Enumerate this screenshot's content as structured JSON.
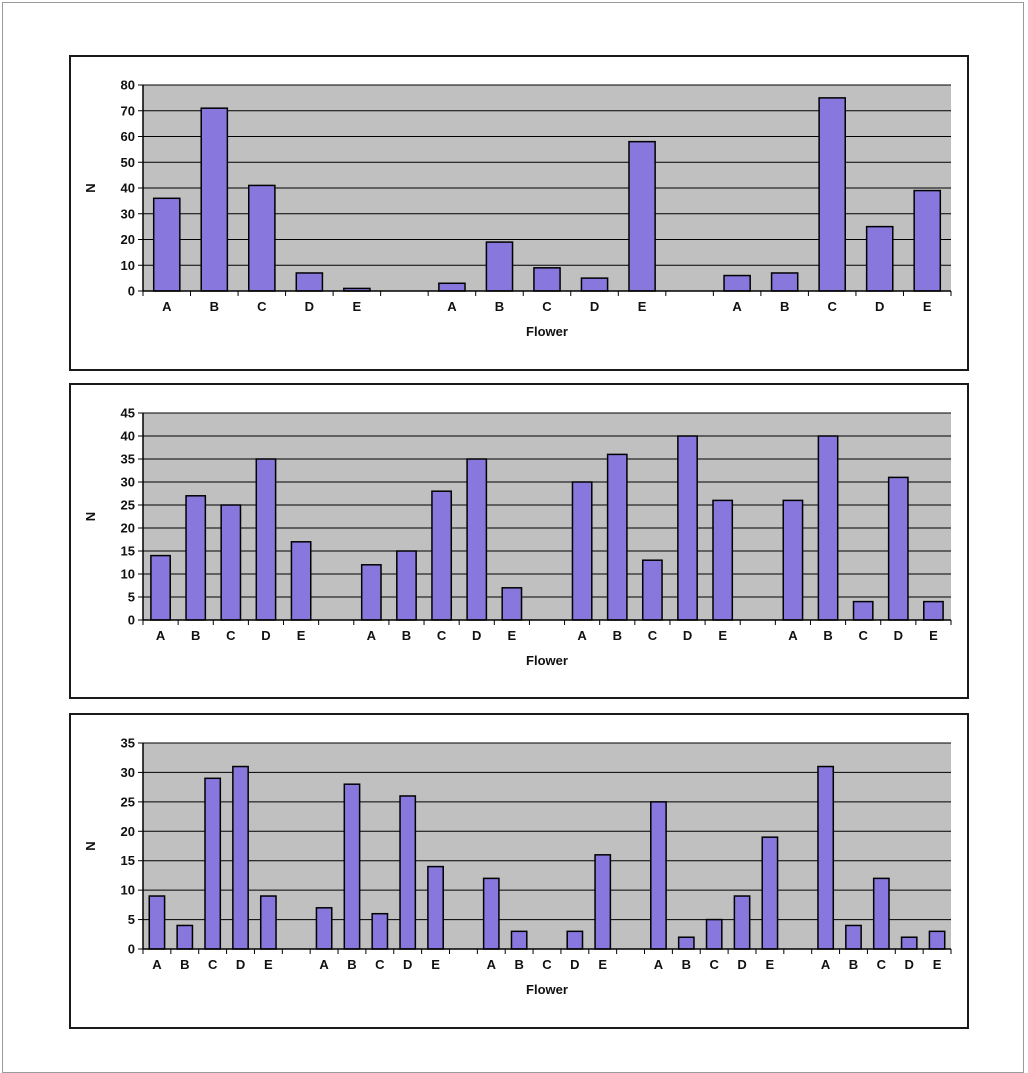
{
  "colors": {
    "bar_fill": "#8877dd",
    "bar_stroke": "#000000",
    "plot_bg": "#c0c0c0",
    "grid": "#000000"
  },
  "chart_data": [
    {
      "type": "bar",
      "xlabel": "Flower",
      "ylabel": "N",
      "ylim": [
        0,
        80
      ],
      "ytick_step": 10,
      "grid": true,
      "groups": [
        {
          "categories": [
            "A",
            "B",
            "C",
            "D",
            "E"
          ],
          "values": [
            36,
            71,
            41,
            7,
            1
          ]
        },
        {
          "categories": [
            "A",
            "B",
            "C",
            "D",
            "E"
          ],
          "values": [
            3,
            19,
            9,
            5,
            58
          ]
        },
        {
          "categories": [
            "A",
            "B",
            "C",
            "D",
            "E"
          ],
          "values": [
            6,
            7,
            75,
            25,
            39
          ]
        }
      ]
    },
    {
      "type": "bar",
      "xlabel": "Flower",
      "ylabel": "N",
      "ylim": [
        0,
        45
      ],
      "ytick_step": 5,
      "grid": true,
      "groups": [
        {
          "categories": [
            "A",
            "B",
            "C",
            "D",
            "E"
          ],
          "values": [
            14,
            27,
            25,
            35,
            17
          ]
        },
        {
          "categories": [
            "A",
            "B",
            "C",
            "D",
            "E"
          ],
          "values": [
            12,
            15,
            28,
            35,
            7
          ]
        },
        {
          "categories": [
            "A",
            "B",
            "C",
            "D",
            "E"
          ],
          "values": [
            30,
            36,
            13,
            40,
            26
          ]
        },
        {
          "categories": [
            "A",
            "B",
            "C",
            "D",
            "E"
          ],
          "values": [
            26,
            40,
            4,
            31,
            4
          ]
        }
      ]
    },
    {
      "type": "bar",
      "xlabel": "Flower",
      "ylabel": "N",
      "ylim": [
        0,
        35
      ],
      "ytick_step": 5,
      "grid": true,
      "groups": [
        {
          "categories": [
            "A",
            "B",
            "C",
            "D",
            "E"
          ],
          "values": [
            9,
            4,
            29,
            31,
            9
          ]
        },
        {
          "categories": [
            "A",
            "B",
            "C",
            "D",
            "E"
          ],
          "values": [
            7,
            28,
            6,
            26,
            14
          ]
        },
        {
          "categories": [
            "A",
            "B",
            "C",
            "D",
            "E"
          ],
          "values": [
            12,
            3,
            0,
            3,
            16
          ]
        },
        {
          "categories": [
            "A",
            "B",
            "C",
            "D",
            "E"
          ],
          "values": [
            25,
            2,
            5,
            9,
            19
          ]
        },
        {
          "categories": [
            "A",
            "B",
            "C",
            "D",
            "E"
          ],
          "values": [
            31,
            4,
            12,
            2,
            3
          ]
        }
      ]
    }
  ]
}
